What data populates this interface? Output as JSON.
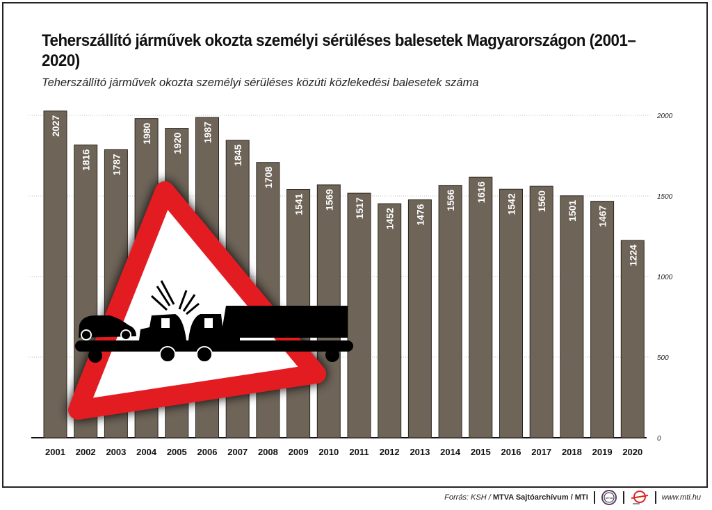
{
  "chart_data": {
    "type": "bar",
    "title": "Teherszállító járművek okozta személyi sérüléses balesetek Magyarországon (2001–2020)",
    "subtitle": "Teherszállító járművek okozta személyi sérüléses közúti közlekedési balesetek száma",
    "categories": [
      "2001",
      "2002",
      "2003",
      "2004",
      "2005",
      "2006",
      "2007",
      "2008",
      "2009",
      "2010",
      "2011",
      "2012",
      "2013",
      "2014",
      "2015",
      "2016",
      "2017",
      "2018",
      "2019",
      "2020"
    ],
    "values": [
      2027,
      1816,
      1787,
      1980,
      1920,
      1987,
      1845,
      1708,
      1541,
      1569,
      1517,
      1452,
      1476,
      1566,
      1616,
      1542,
      1560,
      1501,
      1467,
      1224
    ],
    "yticks": [
      "0",
      "500",
      "1000",
      "1500",
      "2000"
    ],
    "ylim": [
      0,
      2000
    ],
    "grid": true,
    "bar_color": "#6e6458"
  },
  "footer": {
    "source_prefix": "Forrás: KSH / ",
    "source_bold": "MTVA Sajtóarchívum / MTI",
    "logo_text": "MTVA",
    "url": "www.mti.hu"
  }
}
